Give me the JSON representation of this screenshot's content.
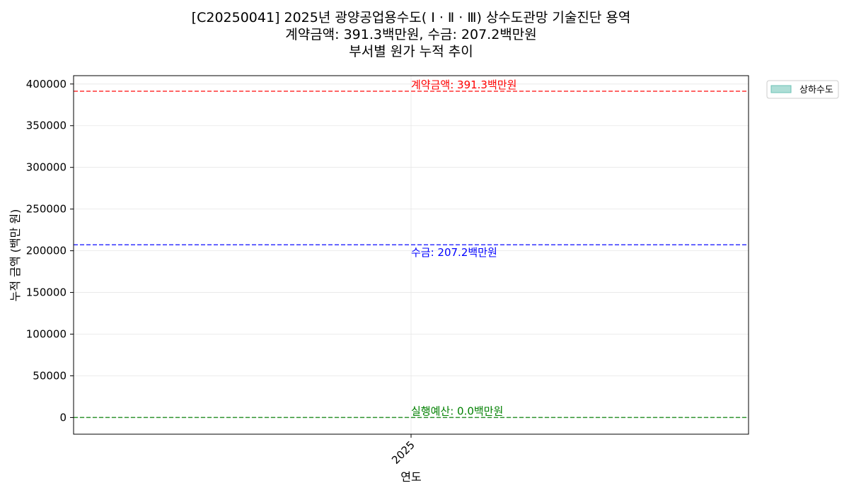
{
  "chart_data": {
    "type": "area",
    "title_lines": [
      "[C20250041] 2025년 광양공업용수도( Ⅰ · Ⅱ · Ⅲ) 상수도관망 기술진단 용역",
      "계약금액: 391.3백만원, 수금: 207.2백만원",
      "부서별 원가 누적 추이"
    ],
    "xlabel": "연도",
    "ylabel": "누적 금액 (백만 원)",
    "categories": [
      "2025"
    ],
    "series": [
      {
        "name": "상하수도",
        "values": [
          0
        ],
        "color": "#6cc3b5"
      }
    ],
    "ylim": [
      -20000,
      410000
    ],
    "yticks": [
      {
        "value": 0,
        "label": "0"
      },
      {
        "value": 50000,
        "label": "50000"
      },
      {
        "value": 100000,
        "label": "100000"
      },
      {
        "value": 150000,
        "label": "150000"
      },
      {
        "value": 200000,
        "label": "200000"
      },
      {
        "value": 250000,
        "label": "250000"
      },
      {
        "value": 300000,
        "label": "300000"
      },
      {
        "value": 350000,
        "label": "350000"
      },
      {
        "value": 400000,
        "label": "400000"
      }
    ],
    "reference_lines": [
      {
        "value": 391300,
        "label": "계약금액: 391.3백만원",
        "color": "#ff0000",
        "label_position": "above"
      },
      {
        "value": 207200,
        "label": "수금: 207.2백만원",
        "color": "#0000ff",
        "label_position": "below"
      },
      {
        "value": 0,
        "label": "실행예산: 0.0백만원",
        "color": "#008000",
        "label_position": "above"
      }
    ],
    "grid": true,
    "legend_position": "outside-top-right"
  }
}
